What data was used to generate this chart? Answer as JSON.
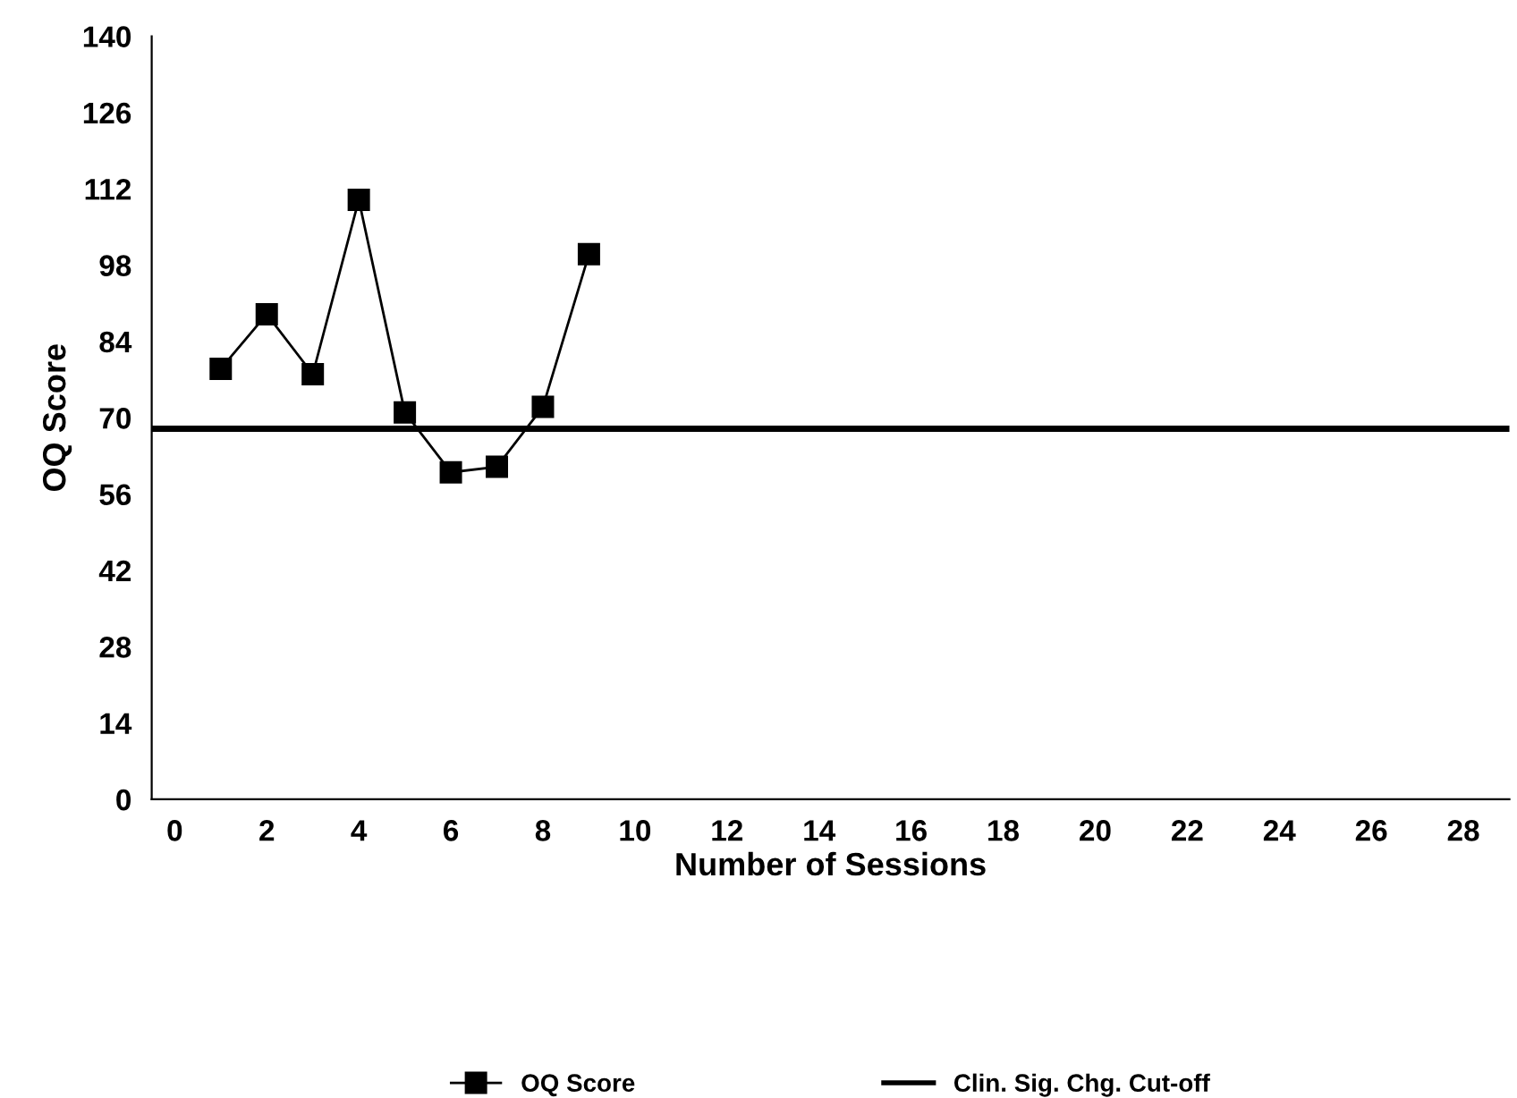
{
  "chart_data": {
    "type": "line",
    "xlabel": "Number of Sessions",
    "ylabel": "OQ Score",
    "x": [
      1,
      2,
      3,
      4,
      5,
      6,
      7,
      8,
      9
    ],
    "series": [
      {
        "name": "OQ Score",
        "color": "#000000",
        "values": [
          79,
          89,
          78,
          110,
          71,
          60,
          61,
          72,
          100
        ]
      }
    ],
    "ref_lines": [
      {
        "axis": "y",
        "value": 68,
        "label": "Clin. Sig. Chg. Cut-off",
        "color": "#000000",
        "line_style": "solid"
      }
    ],
    "xlim": [
      -0.5,
      29
    ],
    "xticks": [
      0,
      2,
      4,
      6,
      8,
      10,
      12,
      14,
      16,
      18,
      20,
      22,
      24,
      26,
      28
    ],
    "ylim": [
      0,
      140
    ],
    "yticks": [
      0,
      14,
      28,
      42,
      56,
      70,
      84,
      98,
      112,
      126,
      140
    ],
    "marker": "square",
    "line_style": "solid",
    "grid": false,
    "legend": "bottom"
  }
}
